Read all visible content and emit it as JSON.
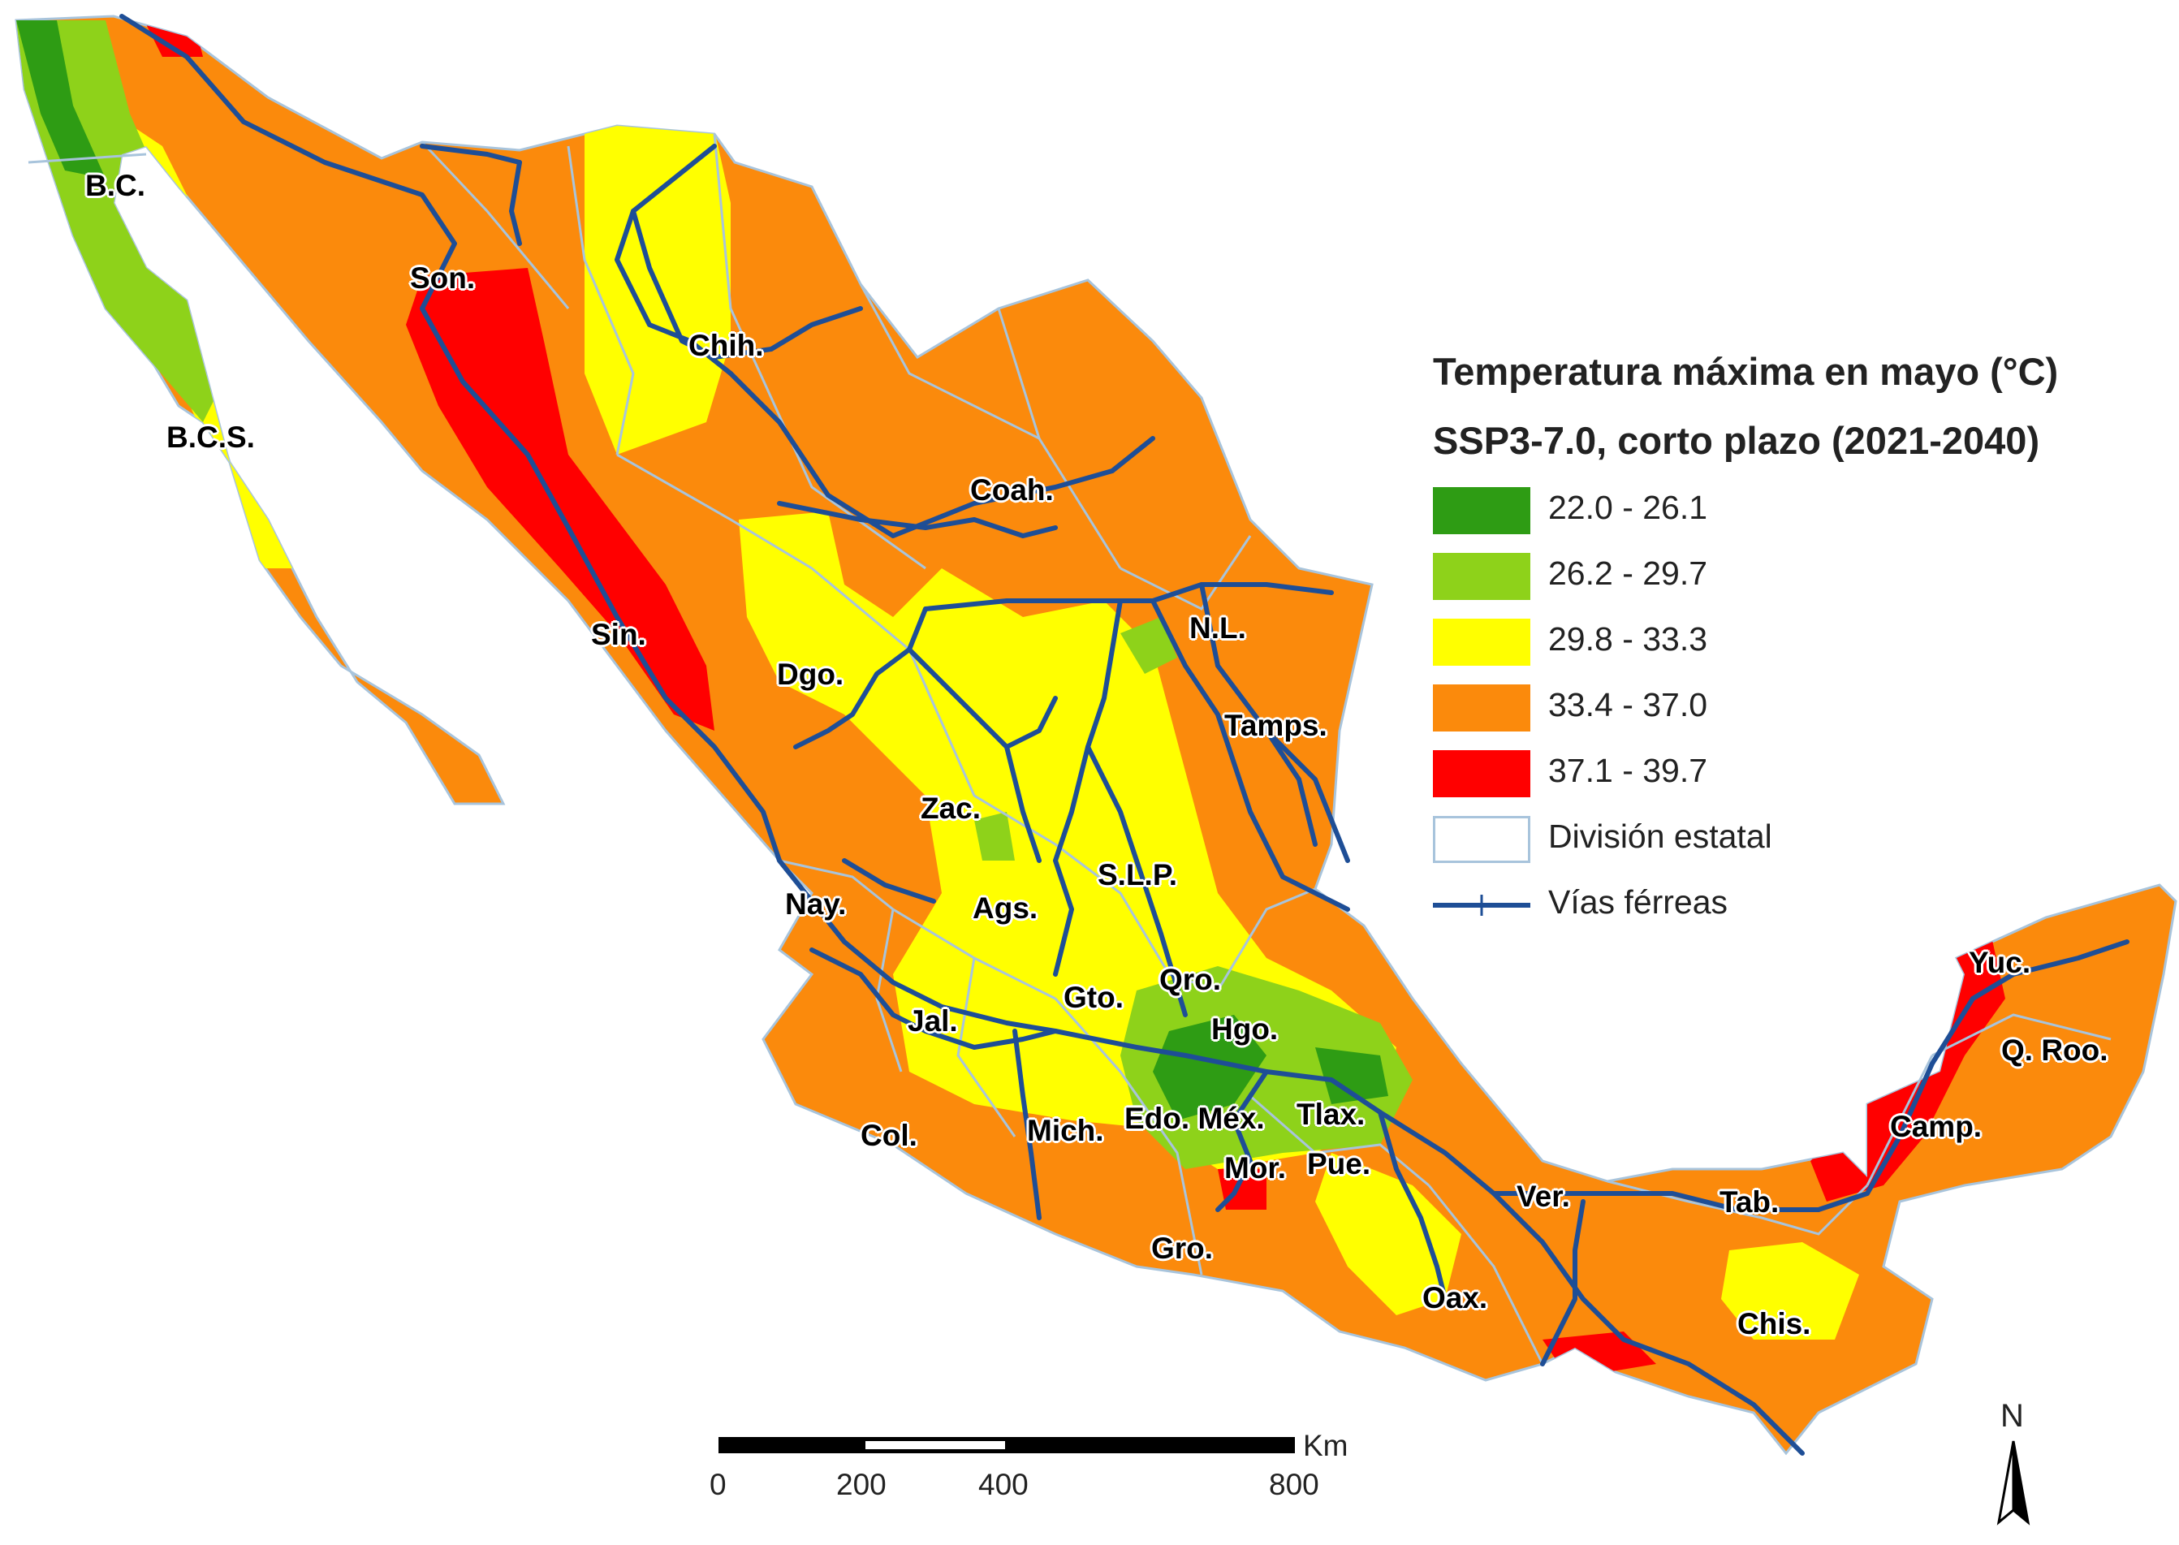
{
  "legend": {
    "title": "Temperatura máxima en mayo (°C)",
    "subtitle": "SSP3-7.0, corto plazo (2021-2040)",
    "classes": [
      {
        "label": "22.0 - 26.1",
        "color": "#2e9c14"
      },
      {
        "label": "26.2 - 29.7",
        "color": "#8ed21a"
      },
      {
        "label": "29.8 - 33.3",
        "color": "#ffff00"
      },
      {
        "label": "33.4 - 37.0",
        "color": "#fb8a0c"
      },
      {
        "label": "37.1 - 39.7",
        "color": "#ff0000"
      }
    ],
    "boundary_label": "División estatal",
    "rail_label": "Vías férreas"
  },
  "colors": {
    "boundary": "#a8c4dc",
    "rail": "#1e4e96"
  },
  "states": {
    "bc": "B.C.",
    "bcs": "B.C.S.",
    "son": "Son.",
    "chih": "Chih.",
    "coah": "Coah.",
    "nl": "N.L.",
    "sin": "Sin.",
    "dgo": "Dgo.",
    "tamps": "Tamps.",
    "zac": "Zac.",
    "slp": "S.L.P.",
    "nay": "Nay.",
    "ags": "Ags.",
    "qro": "Qro.",
    "gto": "Gto.",
    "jal": "Jal.",
    "hgo": "Hgo.",
    "col": "Col.",
    "mich": "Mich.",
    "edo": "Edo. Méx.",
    "tlax": "Tlax.",
    "mor": "Mor.",
    "pue": "Pue.",
    "ver": "Ver.",
    "gro": "Gro.",
    "oax": "Oax.",
    "tab": "Tab.",
    "chis": "Chis.",
    "yuc": "Yuc.",
    "qroo": "Q. Roo.",
    "camp": "Camp."
  },
  "scale": {
    "unit": "Km",
    "ticks": [
      "0",
      "200",
      "400",
      "800"
    ]
  },
  "north": "N"
}
